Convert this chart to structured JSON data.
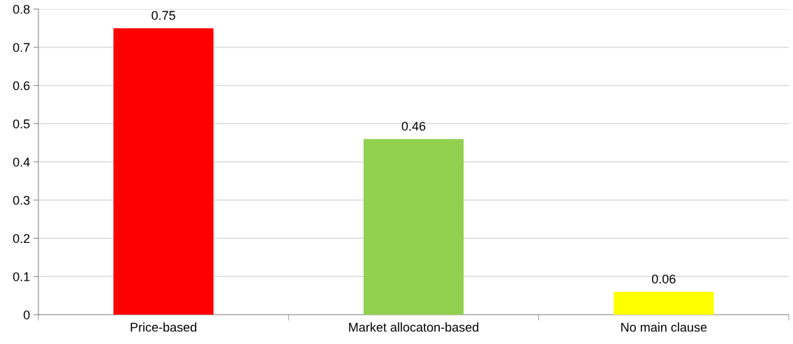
{
  "chart_data": {
    "type": "bar",
    "categories": [
      "Price-based",
      "Market allocaton-based",
      "No main clause"
    ],
    "values": [
      0.75,
      0.46,
      0.06
    ],
    "colors": [
      "#ff0000",
      "#92d050",
      "#ffff00"
    ],
    "ylim": [
      0,
      0.8
    ],
    "yticks": [
      0,
      0.1,
      0.2,
      0.3,
      0.4,
      0.5,
      0.6,
      0.7,
      0.8
    ],
    "grid": "y",
    "data_labels": true
  }
}
